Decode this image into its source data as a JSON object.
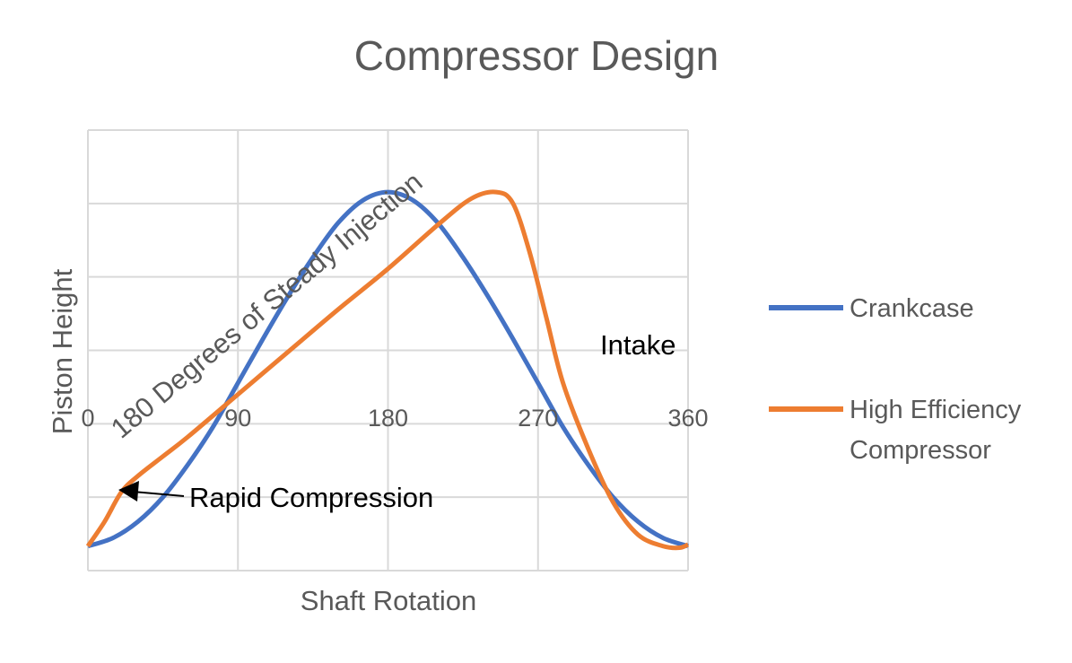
{
  "chart_data": {
    "type": "line",
    "title": "Compressor Design",
    "xlabel": "Shaft Rotation",
    "ylabel": "Piston  Height",
    "xlim": [
      0,
      360
    ],
    "ylim": [
      -1.2,
      1.5
    ],
    "x_ticks": [
      "0",
      "90",
      "180",
      "270",
      "360"
    ],
    "grid": true,
    "legend_position": "right",
    "series": [
      {
        "name": "Crankcase",
        "color": "#4472C4",
        "x": [
          0,
          15,
          30,
          45,
          60,
          75,
          90,
          105,
          120,
          135,
          150,
          165,
          180,
          195,
          210,
          225,
          240,
          255,
          270,
          285,
          300,
          315,
          330,
          345,
          360
        ],
        "y": [
          -1.05,
          -1.0,
          -0.9,
          -0.75,
          -0.55,
          -0.32,
          -0.05,
          0.22,
          0.48,
          0.72,
          0.93,
          1.07,
          1.12,
          1.07,
          0.93,
          0.72,
          0.48,
          0.22,
          -0.05,
          -0.32,
          -0.55,
          -0.75,
          -0.9,
          -1.0,
          -1.05
        ]
      },
      {
        "name": "High Efficiency Compressor",
        "color": "#ED7D31",
        "x": [
          0,
          10,
          20,
          30,
          45,
          60,
          90,
          120,
          150,
          180,
          210,
          230,
          245,
          255,
          265,
          275,
          285,
          300,
          315,
          330,
          345,
          355,
          360
        ],
        "y": [
          -1.05,
          -0.9,
          -0.72,
          -0.62,
          -0.5,
          -0.38,
          -0.12,
          0.14,
          0.4,
          0.65,
          0.92,
          1.08,
          1.12,
          1.05,
          0.75,
          0.35,
          -0.05,
          -0.45,
          -0.78,
          -0.98,
          -1.05,
          -1.06,
          -1.04
        ]
      }
    ],
    "annotations": {
      "rotated_label": "180 Degrees of Steady Injection",
      "intake_label": "Intake",
      "rapid_label": "Rapid Compression"
    }
  }
}
